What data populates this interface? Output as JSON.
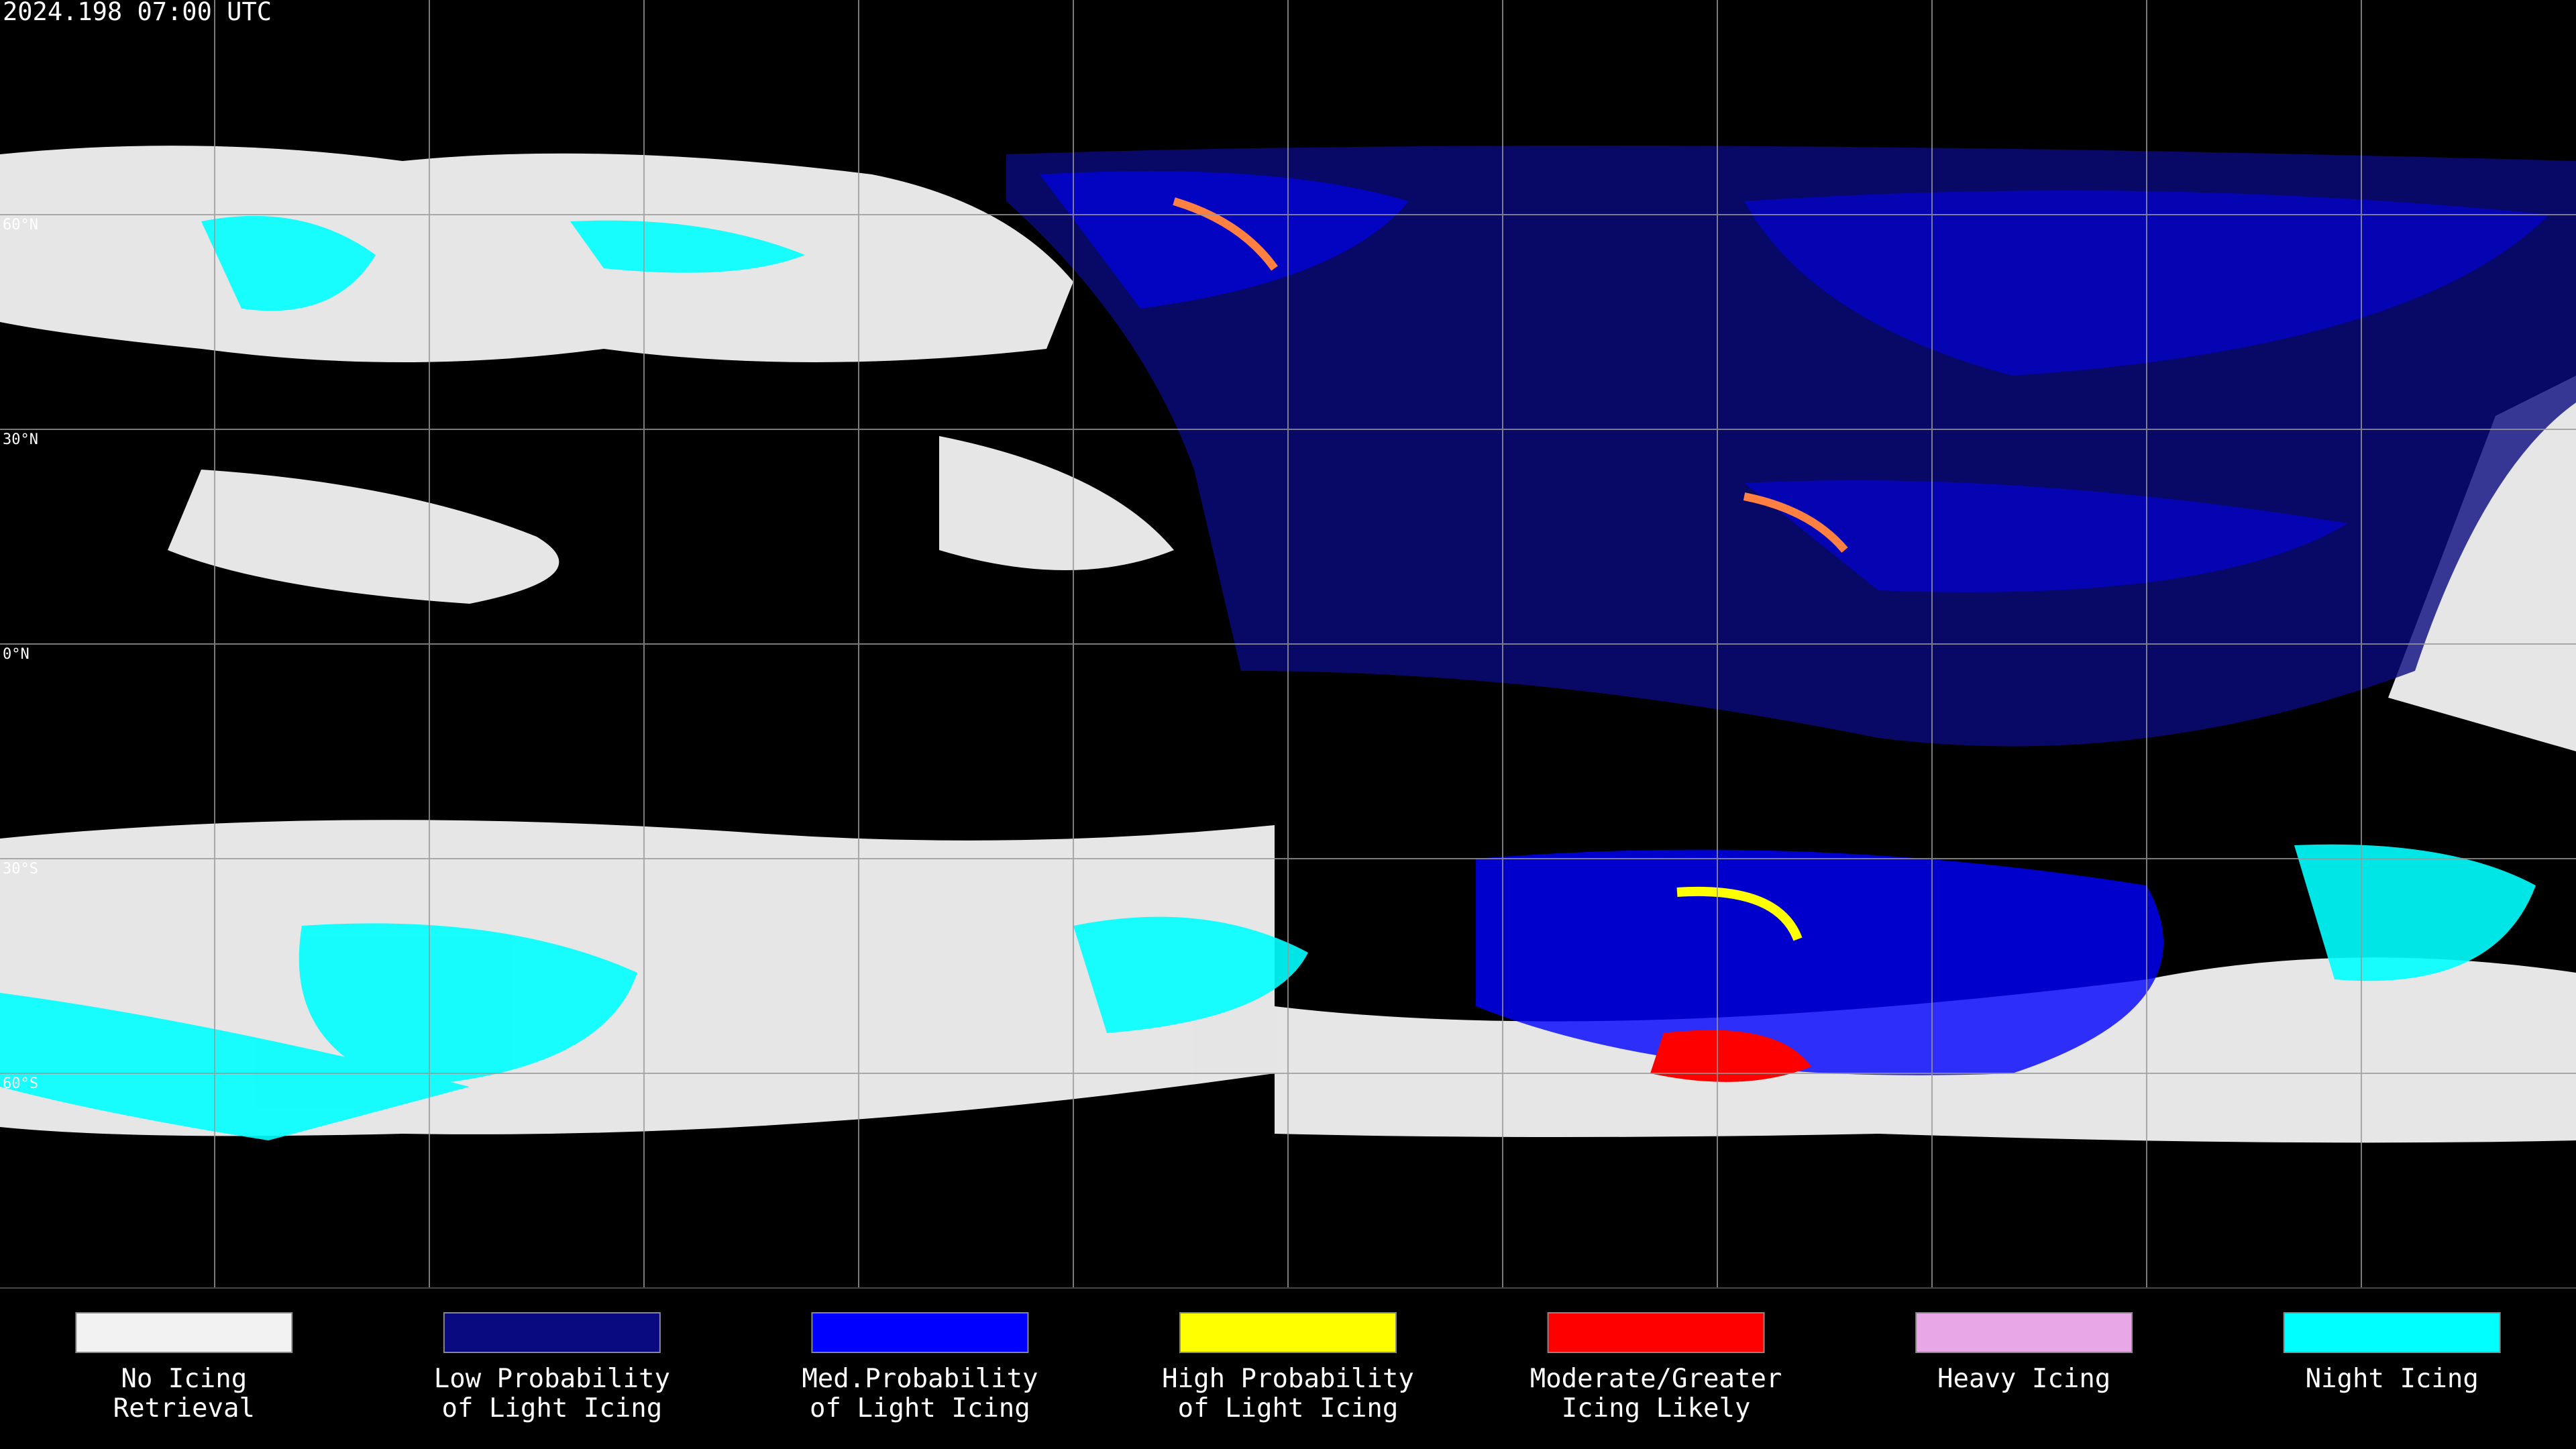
{
  "header": {
    "timestamp": "2024.198 07:00 UTC"
  },
  "latitude_labels": [
    "60°N",
    "30°N",
    "0°N",
    "30°S",
    "60°S"
  ],
  "legend": [
    {
      "lines": [
        "No Icing",
        "Retrieval"
      ],
      "color": "#f2f2f2"
    },
    {
      "lines": [
        "Low Probability",
        "of Light Icing"
      ],
      "color": "#0a0a80"
    },
    {
      "lines": [
        "Med.Probability",
        "of Light Icing"
      ],
      "color": "#0000ff"
    },
    {
      "lines": [
        "High Probability",
        "of Light Icing"
      ],
      "color": "#ffff00"
    },
    {
      "lines": [
        "Moderate/Greater",
        "Icing Likely"
      ],
      "color": "#ff0000"
    },
    {
      "lines": [
        "Heavy Icing"
      ],
      "color": "#e8a8e8"
    },
    {
      "lines": [
        "Night Icing"
      ],
      "color": "#00ffff"
    }
  ]
}
